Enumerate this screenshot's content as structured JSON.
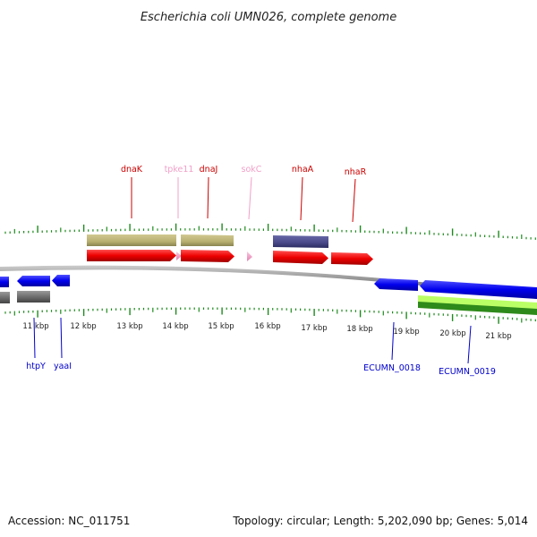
{
  "title": "Escherichia coli UMN026, complete genome",
  "footer": {
    "accession": "Accession: NC_011751",
    "summary": "Topology: circular; Length: 5,202,090 bp; Genes: 5,014"
  },
  "scale": {
    "tick_labels": [
      "11 kbp",
      "12 kbp",
      "13 kbp",
      "14 kbp",
      "15 kbp",
      "16 kbp",
      "17 kbp",
      "18 kbp",
      "19 kbp",
      "20 kbp",
      "21 kbp"
    ]
  },
  "genes_top": [
    {
      "name": "dnaK",
      "color": "#cc0000"
    },
    {
      "name": "tpke11",
      "color": "#f0a0c8"
    },
    {
      "name": "dnaJ",
      "color": "#cc0000"
    },
    {
      "name": "sokC",
      "color": "#f0a0c8"
    },
    {
      "name": "nhaA",
      "color": "#cc0000"
    },
    {
      "name": "nhaR",
      "color": "#cc0000"
    }
  ],
  "genes_bottom": [
    {
      "name": "htpY",
      "color": "#0000cc"
    },
    {
      "name": "yaaI",
      "color": "#0000cc"
    },
    {
      "name": "ECUMN_0018",
      "color": "#0000cc"
    },
    {
      "name": "ECUMN_0019",
      "color": "#0000cc"
    }
  ],
  "colors": {
    "forward_cds": "#ee0000",
    "reverse_cds": "#0000ee",
    "gene_feature": "#b8b070",
    "misc_feature": "#484888",
    "rna": "#f4a0c8",
    "pseudo": "#666666",
    "green_feature": "#44aa22",
    "lightgreen_feature": "#bbff66",
    "tick": "#1e8a1e",
    "backbone": "#888888"
  }
}
